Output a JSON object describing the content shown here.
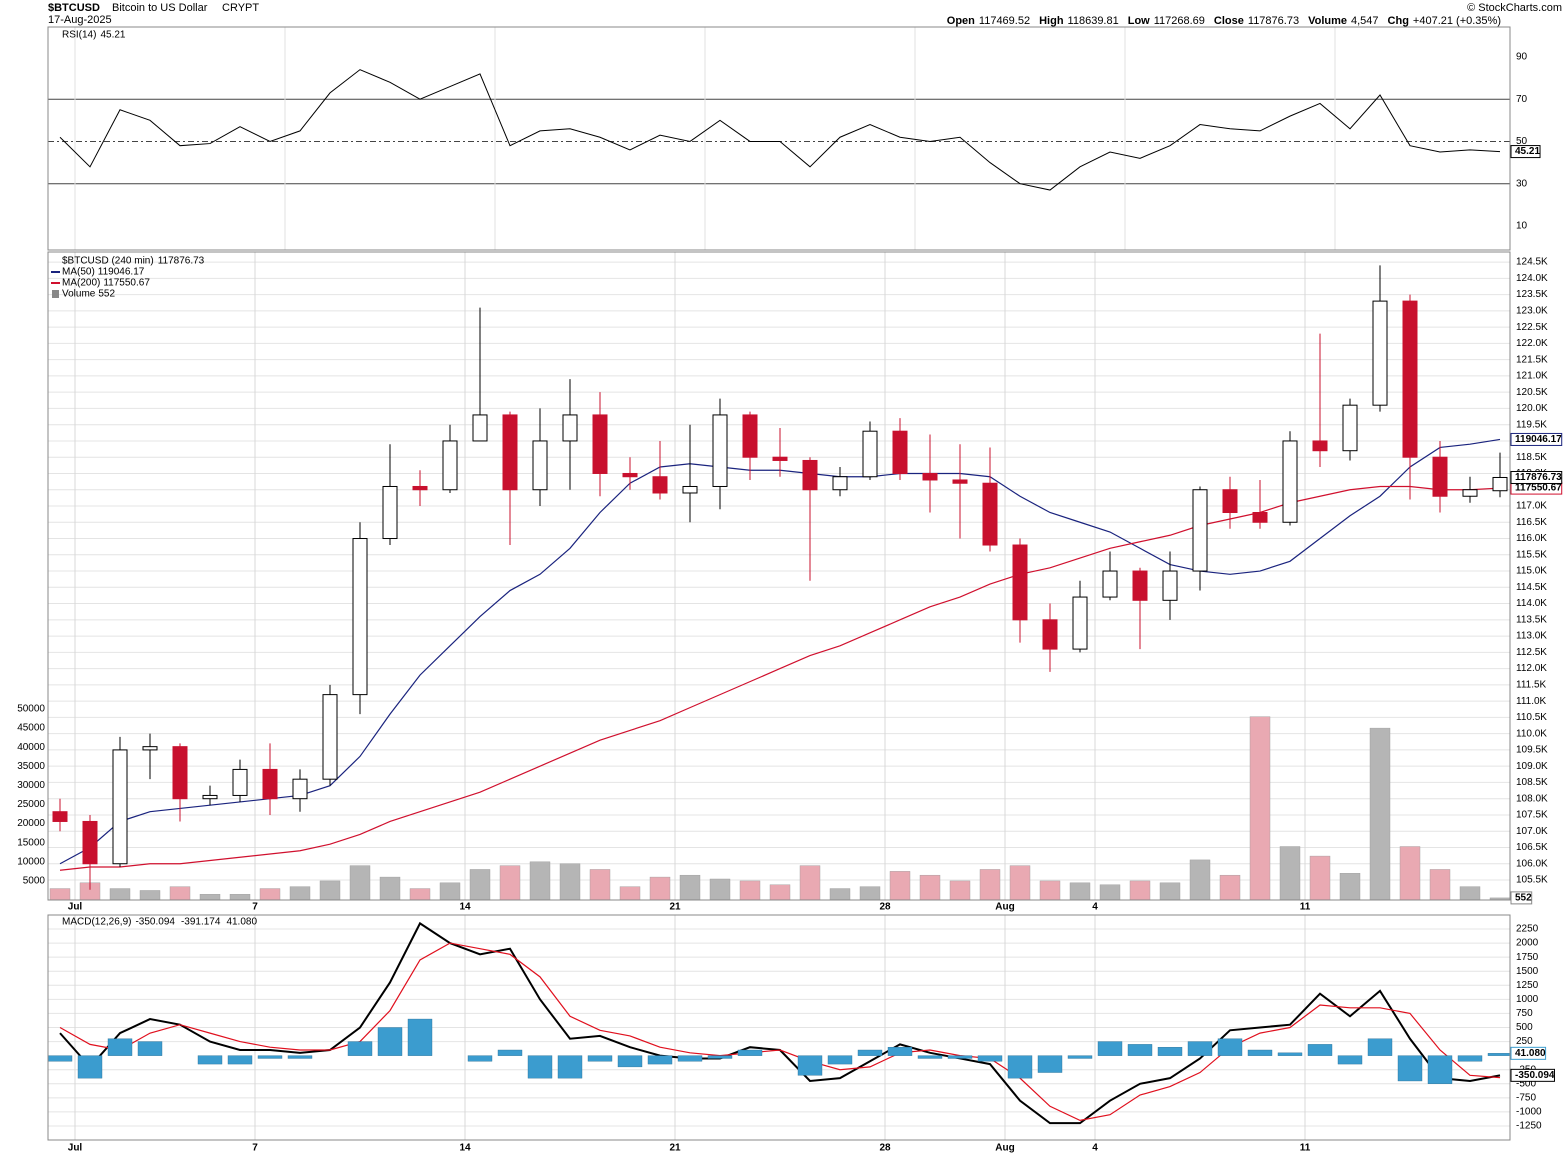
{
  "header": {
    "title": "$BTCUSD",
    "name": "Bitcoin to US Dollar",
    "exchange": "CRYPT",
    "date": "17-Aug-2025",
    "watermark": "© StockCharts.com",
    "quote": [
      {
        "label": "Open",
        "value": 117469.52
      },
      {
        "label": "High",
        "value": 118639.81
      },
      {
        "label": "Low",
        "value": 117268.69
      },
      {
        "label": "Close",
        "value": 117876.73
      },
      {
        "label": "Volume",
        "value": "4,547"
      },
      {
        "label": "Chg",
        "value": "+407.21 (+0.35%)"
      }
    ]
  },
  "chart_data": [
    {
      "type": "line",
      "title": "RSI(14)",
      "color": "#000000",
      "values": [
        52,
        38,
        65,
        60,
        48,
        49,
        57,
        50,
        55,
        73,
        84,
        78,
        70,
        76,
        82,
        48,
        55,
        56,
        52,
        46,
        53,
        50,
        60,
        50,
        50,
        38,
        52,
        58,
        52,
        50,
        52,
        40,
        30,
        27,
        38,
        45,
        42,
        48,
        58,
        56,
        55,
        62,
        68,
        56,
        72,
        48,
        45,
        46,
        45.21
      ],
      "ylim": [
        -1.4,
        104.2
      ],
      "yticks": [
        10,
        30,
        50,
        70,
        90
      ],
      "reference_lines": [
        30,
        50,
        70
      ]
    },
    {
      "type": "candlestick",
      "title": "$BTCUSD (240 min)",
      "categories": [
        null,
        "Jul",
        null,
        null,
        null,
        null,
        null,
        "7",
        null,
        null,
        null,
        null,
        null,
        null,
        "14",
        null,
        null,
        null,
        null,
        null,
        null,
        "21",
        null,
        null,
        null,
        null,
        null,
        null,
        "28",
        null,
        null,
        null,
        "Aug",
        null,
        null,
        "4",
        null,
        null,
        null,
        null,
        null,
        null,
        "11",
        null,
        null,
        null,
        null,
        null,
        null
      ],
      "open": [
        107600,
        107300,
        106000,
        109500,
        109600,
        108000,
        108100,
        108900,
        108000,
        108600,
        111200,
        116000,
        117600,
        117500,
        119000,
        119800,
        117500,
        119000,
        119800,
        118000,
        117900,
        117400,
        117600,
        119800,
        118500,
        118400,
        117500,
        117900,
        119300,
        118000,
        117800,
        117700,
        115800,
        113500,
        112600,
        114200,
        115000,
        114100,
        115000,
        117500,
        116800,
        116500,
        119000,
        118700,
        120100,
        123300,
        118500,
        117300,
        117469.52
      ],
      "high": [
        108000,
        107500,
        109900,
        110000,
        109700,
        108400,
        109200,
        109700,
        108900,
        111500,
        116500,
        118900,
        118100,
        119500,
        123100,
        119900,
        120000,
        120900,
        120500,
        118500,
        119000,
        119500,
        120300,
        119900,
        119400,
        118500,
        118200,
        119600,
        119700,
        119200,
        118900,
        118800,
        116000,
        114000,
        114700,
        115600,
        115100,
        115600,
        117600,
        117900,
        117800,
        119300,
        122300,
        120300,
        124400,
        123500,
        119000,
        117900,
        118639.81
      ],
      "low": [
        107000,
        105200,
        105900,
        108600,
        107300,
        107800,
        107900,
        107500,
        107600,
        108400,
        110600,
        115800,
        117000,
        117400,
        119000,
        115800,
        117000,
        117500,
        117300,
        117500,
        117200,
        116500,
        116900,
        117800,
        117900,
        114700,
        117300,
        117800,
        117800,
        116800,
        116000,
        115600,
        112800,
        111900,
        112500,
        114100,
        112600,
        113500,
        114400,
        116300,
        116300,
        116400,
        118200,
        118400,
        119900,
        117200,
        116800,
        117100,
        117268.69
      ],
      "close": [
        107300,
        106000,
        109500,
        109600,
        108000,
        108100,
        108900,
        108000,
        108600,
        111200,
        116000,
        117600,
        117500,
        119000,
        119800,
        117500,
        119000,
        119800,
        118000,
        117900,
        117400,
        117600,
        119800,
        118500,
        118400,
        117500,
        117900,
        119300,
        118000,
        117800,
        117700,
        115800,
        113500,
        112600,
        114200,
        115000,
        114100,
        115000,
        117500,
        116800,
        116500,
        119000,
        118700,
        120100,
        123300,
        118500,
        117300,
        117500,
        117876.73
      ],
      "up_color": "#ffffff",
      "down_color": "#c8102e",
      "series": [
        {
          "name": "MA(50)",
          "color": "#1a237e",
          "values": [
            106000,
            106500,
            107300,
            107600,
            107700,
            107800,
            107900,
            108000,
            108100,
            108400,
            109300,
            110600,
            111800,
            112700,
            113600,
            114400,
            114900,
            115700,
            116800,
            117700,
            118200,
            118300,
            118200,
            118100,
            118100,
            118000,
            117900,
            117900,
            118000,
            118000,
            118000,
            117900,
            117300,
            116800,
            116500,
            116200,
            115700,
            115200,
            115000,
            114900,
            115000,
            115300,
            116000,
            116700,
            117300,
            118200,
            118800,
            118900,
            119046.17
          ]
        },
        {
          "name": "MA(200)",
          "color": "#d0102e",
          "values": [
            105800,
            105900,
            105900,
            106000,
            106000,
            106100,
            106200,
            106300,
            106400,
            106600,
            106900,
            107300,
            107600,
            107900,
            108200,
            108600,
            109000,
            109400,
            109800,
            110100,
            110400,
            110800,
            111200,
            111600,
            112000,
            112400,
            112700,
            113100,
            113500,
            113900,
            114200,
            114600,
            114900,
            115100,
            115400,
            115700,
            115900,
            116100,
            116400,
            116600,
            116800,
            117100,
            117300,
            117500,
            117600,
            117600,
            117500,
            117500,
            117550.67
          ]
        }
      ],
      "volume": {
        "name": "Volume",
        "up_color": "#b5b5b5",
        "down_color": "#e9a9b2",
        "values": [
          3000,
          4500,
          3000,
          2500,
          3500,
          1500,
          1500,
          3000,
          3500,
          5000,
          9000,
          6000,
          3000,
          4500,
          8000,
          9000,
          10000,
          9500,
          8000,
          3500,
          6000,
          6500,
          5500,
          5000,
          4000,
          9000,
          3000,
          3500,
          7500,
          6500,
          5000,
          8000,
          9000,
          5000,
          4500,
          4000,
          5000,
          4500,
          10500,
          6500,
          48000,
          14000,
          11500,
          7000,
          45000,
          14000,
          8000,
          3500,
          552
        ],
        "ylim": [
          0,
          169634
        ],
        "yticks": [
          5000,
          10000,
          15000,
          20000,
          25000,
          30000,
          35000,
          40000,
          45000,
          50000
        ]
      },
      "ylim": [
        104885,
        124810
      ],
      "yticks": [
        {
          "value": 105500,
          "label": "105.5K"
        },
        {
          "value": 106000,
          "label": "106.0K"
        },
        {
          "value": 106500,
          "label": "106.5K"
        },
        {
          "value": 107000,
          "label": "107.0K"
        },
        {
          "value": 107500,
          "label": "107.5K"
        },
        {
          "value": 108000,
          "label": "108.0K"
        },
        {
          "value": 108500,
          "label": "108.5K"
        },
        {
          "value": 109000,
          "label": "109.0K"
        },
        {
          "value": 109500,
          "label": "109.5K"
        },
        {
          "value": 110000,
          "label": "110.0K"
        },
        {
          "value": 110500,
          "label": "110.5K"
        },
        {
          "value": 111000,
          "label": "111.0K"
        },
        {
          "value": 111500,
          "label": "111.5K"
        },
        {
          "value": 112000,
          "label": "112.0K"
        },
        {
          "value": 112500,
          "label": "112.5K"
        },
        {
          "value": 113000,
          "label": "113.0K"
        },
        {
          "value": 113500,
          "label": "113.5K"
        },
        {
          "value": 114000,
          "label": "114.0K"
        },
        {
          "value": 114500,
          "label": "114.5K"
        },
        {
          "value": 115000,
          "label": "115.0K"
        },
        {
          "value": 115500,
          "label": "115.5K"
        },
        {
          "value": 116000,
          "label": "116.0K"
        },
        {
          "value": 116500,
          "label": "116.5K"
        },
        {
          "value": 117000,
          "label": "117.0K"
        },
        {
          "value": 117500,
          "label": "117.5K"
        },
        {
          "value": 118000,
          "label": "118.0K"
        },
        {
          "value": 118500,
          "label": "118.5K"
        },
        {
          "value": 119000,
          "label": "119.0K"
        },
        {
          "value": 119500,
          "label": "119.5K"
        },
        {
          "value": 120000,
          "label": "120.0K"
        },
        {
          "value": 120500,
          "label": "120.5K"
        },
        {
          "value": 121000,
          "label": "121.0K"
        },
        {
          "value": 121500,
          "label": "121.5K"
        },
        {
          "value": 122000,
          "label": "122.0K"
        },
        {
          "value": 122500,
          "label": "122.5K"
        },
        {
          "value": 123000,
          "label": "123.0K"
        },
        {
          "value": 123500,
          "label": "123.5K"
        },
        {
          "value": 124000,
          "label": "124.0K"
        },
        {
          "value": 124500,
          "label": "124.5K"
        }
      ],
      "grid": true
    },
    {
      "type": "macd",
      "title": "MACD(12,26,9)",
      "categories": [
        null,
        "Jul",
        null,
        null,
        null,
        null,
        null,
        "7",
        null,
        null,
        null,
        null,
        null,
        null,
        "14",
        null,
        null,
        null,
        null,
        null,
        null,
        "21",
        null,
        null,
        null,
        null,
        null,
        null,
        "28",
        null,
        null,
        null,
        "Aug",
        null,
        null,
        "4",
        null,
        null,
        null,
        null,
        null,
        null,
        "11",
        null,
        null,
        null,
        null,
        null,
        null
      ],
      "series": [
        {
          "color": "#000000",
          "values": [
            400,
            -200,
            400,
            650,
            550,
            250,
            100,
            100,
            50,
            100,
            500,
            1300,
            2350,
            2000,
            1800,
            1900,
            1000,
            300,
            350,
            150,
            0,
            -50,
            -50,
            150,
            100,
            -450,
            -400,
            -100,
            200,
            50,
            -50,
            -150,
            -800,
            -1200,
            -1200,
            -800,
            -500,
            -400,
            -50,
            450,
            500,
            550,
            1100,
            700,
            1150,
            300,
            -400,
            -450,
            -350.094
          ]
        },
        {
          "color": "#e0101e",
          "values": [
            500,
            200,
            100,
            400,
            550,
            400,
            250,
            150,
            100,
            100,
            250,
            800,
            1700,
            2000,
            1900,
            1800,
            1400,
            700,
            450,
            350,
            150,
            50,
            0,
            50,
            100,
            -100,
            -250,
            -200,
            50,
            100,
            0,
            -50,
            -400,
            -900,
            -1150,
            -1050,
            -700,
            -550,
            -300,
            150,
            400,
            500,
            900,
            850,
            850,
            750,
            100,
            -350,
            -391.174
          ]
        },
        {
          "color": "#3b9ccf",
          "kind": "histogram",
          "values": [
            -100,
            -400,
            300,
            250,
            0,
            -150,
            -150,
            -50,
            -50,
            0,
            250,
            500,
            650,
            0,
            -100,
            100,
            -400,
            -400,
            -100,
            -200,
            -150,
            -100,
            -50,
            100,
            0,
            -350,
            -150,
            100,
            150,
            -50,
            -50,
            -100,
            -400,
            -300,
            -50,
            250,
            200,
            150,
            250,
            300,
            100,
            50,
            200,
            -150,
            300,
            -450,
            -500,
            -100,
            41.08
          ],
          "value_labels": [
            null,
            null,
            null,
            null,
            null,
            null,
            null,
            null,
            null,
            null,
            null,
            null,
            null,
            null,
            null,
            null,
            null,
            null,
            null,
            null,
            null,
            null,
            null,
            null,
            null,
            null,
            null,
            null,
            null,
            null,
            null,
            null,
            null,
            null,
            null,
            null,
            null,
            null,
            null,
            null,
            null,
            null,
            null,
            null,
            null,
            null,
            null,
            null,
            "41.080"
          ]
        }
      ],
      "ylim": [
        -1499,
        2499
      ],
      "yticks": [
        -1250,
        -1000,
        -750,
        -500,
        -250,
        250,
        500,
        750,
        1000,
        1250,
        1500,
        1750,
        2000,
        2250
      ],
      "grid": true
    }
  ]
}
